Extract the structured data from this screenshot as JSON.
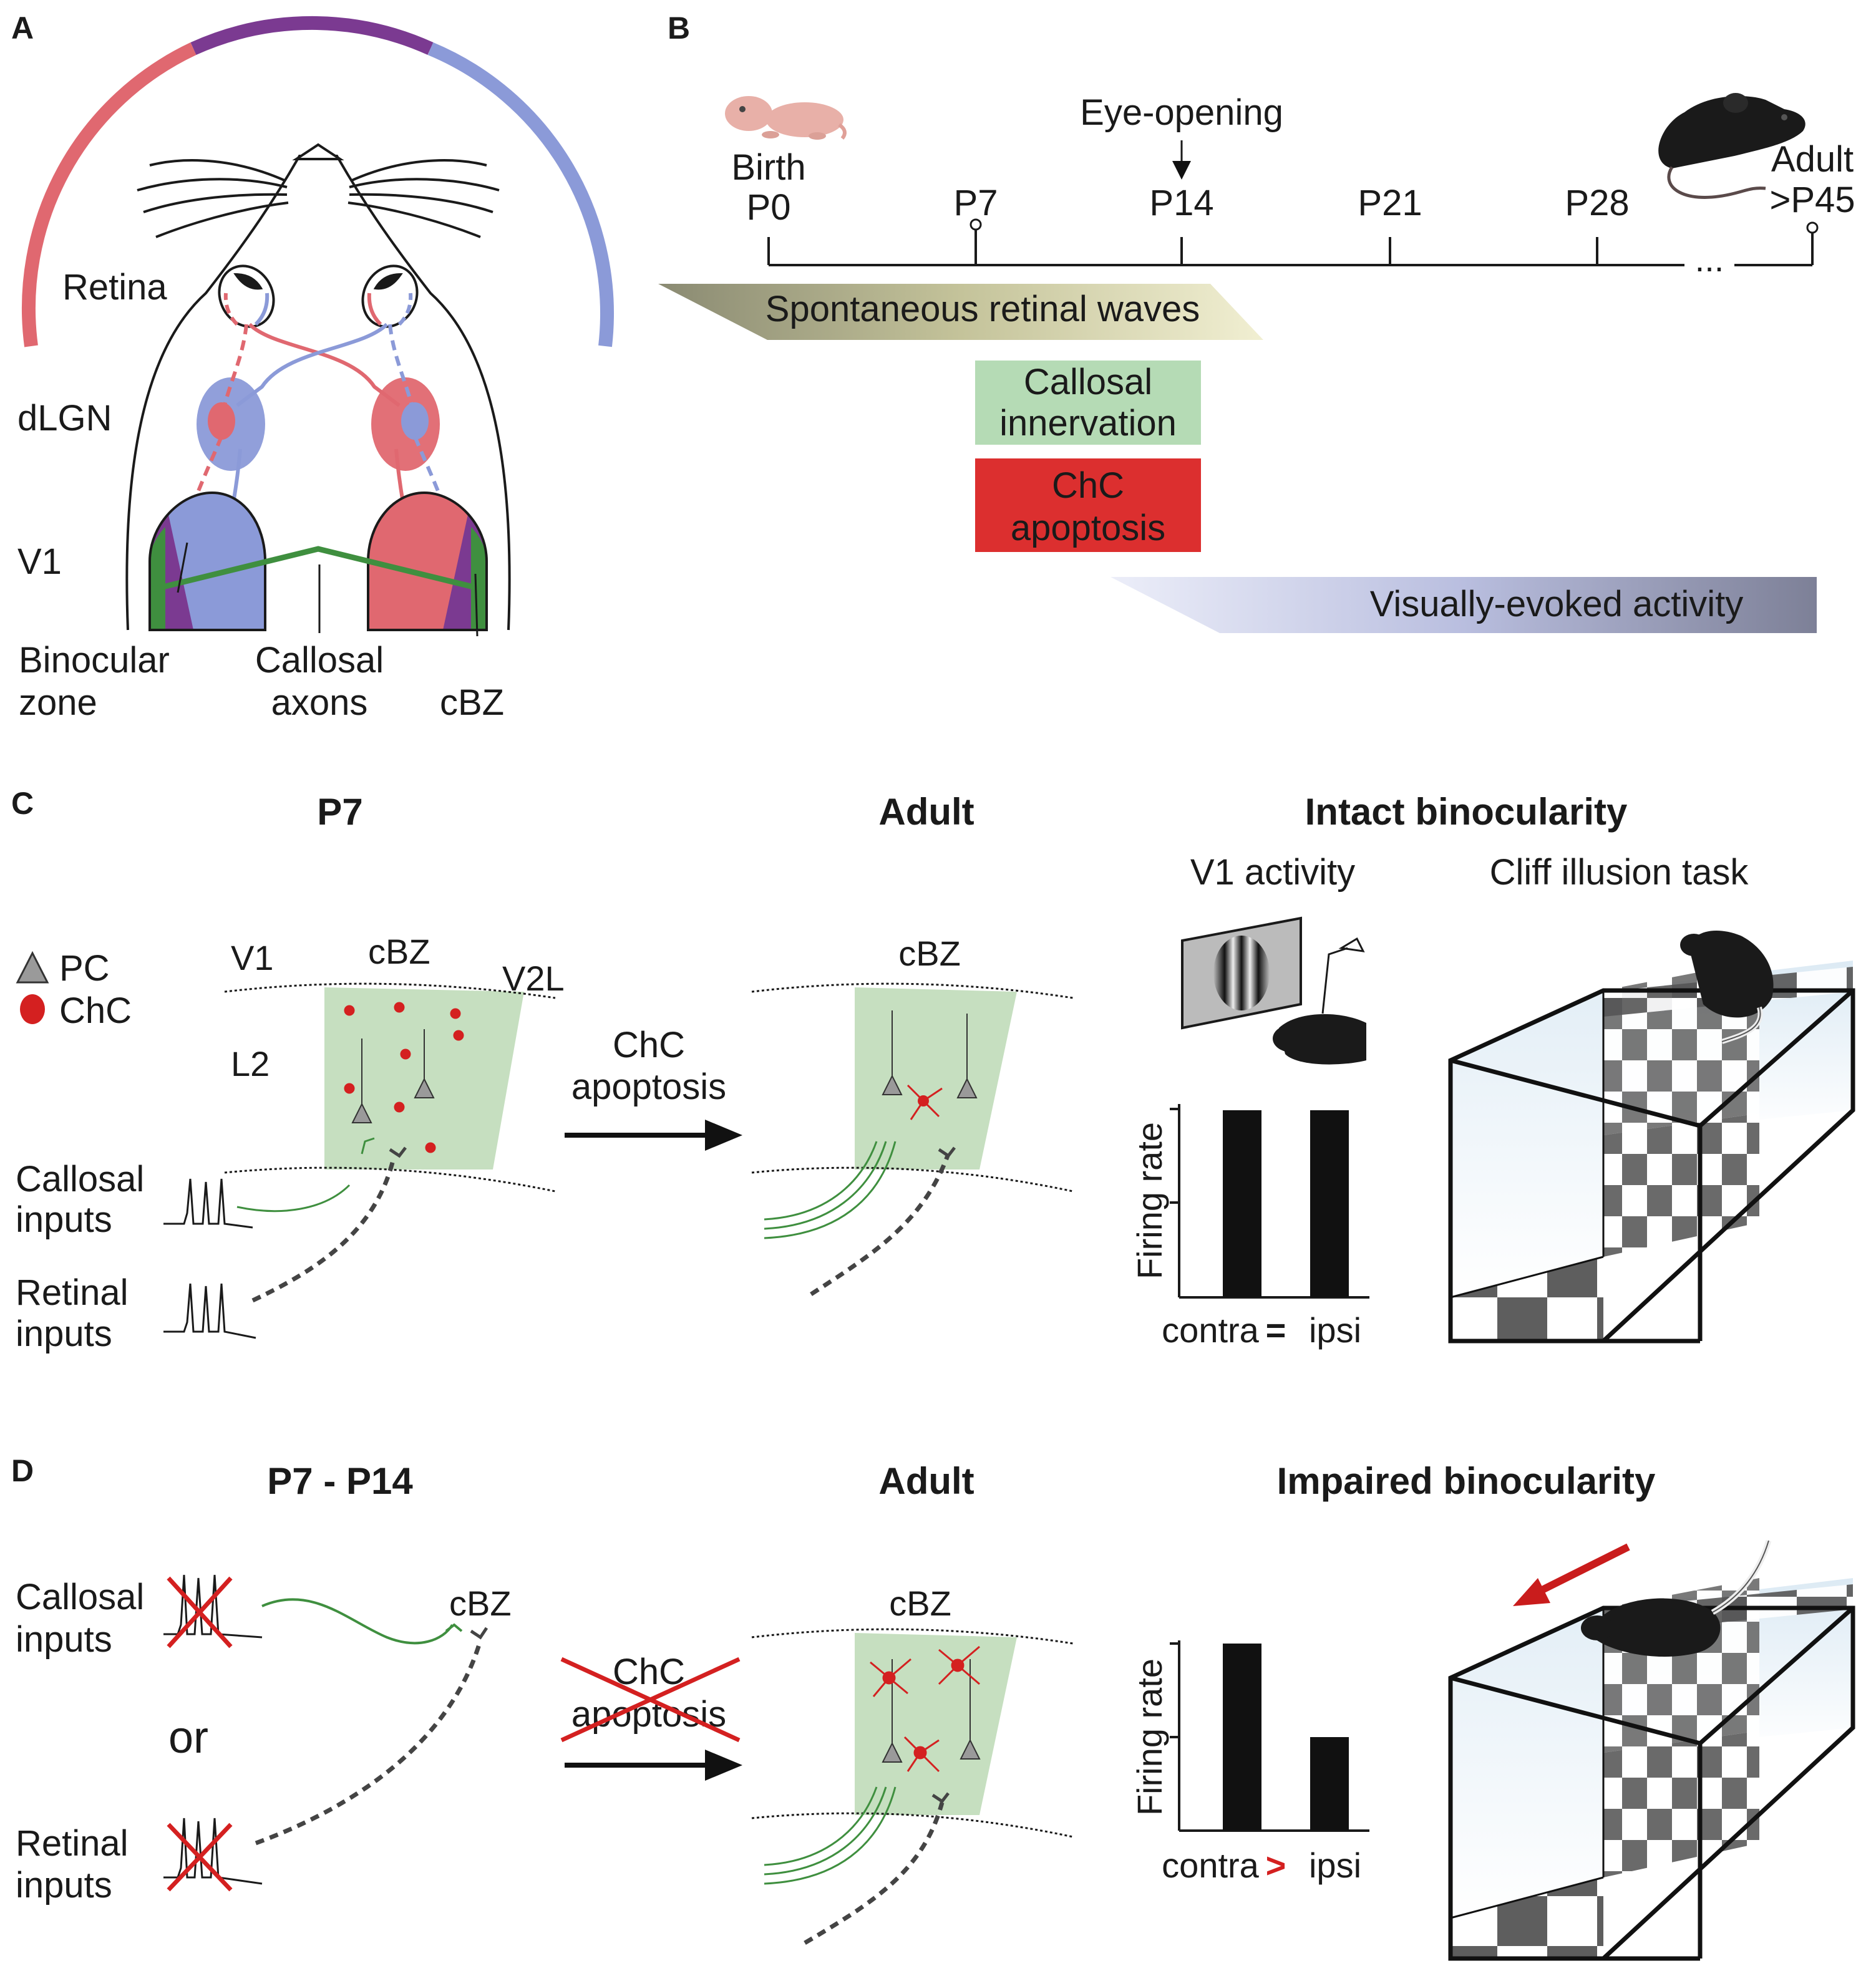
{
  "panels": {
    "A": {
      "letter": "A",
      "labels": {
        "retina": "Retina",
        "dlgn": "dLGN",
        "v1": "V1",
        "binocular_1": "Binocular",
        "binocular_2": "zone",
        "callosal_1": "Callosal",
        "callosal_2": "axons",
        "cbz": "cBZ"
      }
    },
    "B": {
      "letter": "B",
      "birth": "Birth",
      "eye_opening": "Eye-opening",
      "adult": "Adult",
      "ellipsis": "...",
      "ticks": [
        "P0",
        "P7",
        "P14",
        "P21",
        "P28",
        ">P45"
      ],
      "bands": {
        "retinal_waves": "Spontaneous retinal waves",
        "callosal_1": "Callosal",
        "callosal_2": "innervation",
        "chc_1": "ChC",
        "chc_2": "apoptosis",
        "visual": "Visually-evoked activity"
      }
    },
    "C": {
      "letter": "C",
      "titles": {
        "p7": "P7",
        "adult": "Adult",
        "intact": "Intact binocularity"
      },
      "sub": {
        "v1_activity": "V1 activity",
        "cliff": "Cliff illusion task"
      },
      "legend": {
        "pc": "PC",
        "chc": "ChC"
      },
      "tissue": {
        "v1": "V1",
        "cbz": "cBZ",
        "v2l": "V2L",
        "l2": "L2",
        "cbz_adult": "cBZ"
      },
      "inputs": {
        "callosal_1": "Callosal",
        "callosal_2": "inputs",
        "retinal_1": "Retinal",
        "retinal_2": "inputs"
      },
      "arrow_1": "ChC",
      "arrow_2": "apoptosis",
      "ylabel": "Firing rate",
      "xl_contra": "contra",
      "xl_sym": "=",
      "xl_ipsi": "ipsi",
      "bars": {
        "contra": 1.0,
        "ipsi": 1.0
      }
    },
    "D": {
      "letter": "D",
      "titles": {
        "p7p14": "P7 - P14",
        "adult": "Adult",
        "impaired": "Impaired binocularity"
      },
      "inputs": {
        "callosal_1": "Callosal",
        "callosal_2": "inputs",
        "or": "or",
        "retinal_1": "Retinal",
        "retinal_2": "inputs"
      },
      "cbz_left": "cBZ",
      "cbz_adult": "cBZ",
      "arrow_1": "ChC",
      "arrow_2": "apoptosis",
      "ylabel": "Firing rate",
      "xl_contra": "contra",
      "xl_sym": ">",
      "xl_ipsi": "ipsi",
      "bars": {
        "contra": 1.0,
        "ipsi": 0.5
      }
    }
  },
  "colors": {
    "contra_red": "#e06870",
    "ipsi_blue": "#8b9ad8",
    "purple": "#7b3a91",
    "green": "#3f8f3f",
    "chc_red": "#d42020",
    "tissue_green": "#c6dfc0",
    "box_green": "#b5dbb5",
    "box_red": "#dc2f2f"
  },
  "icons": [
    "mouse-pup-icon",
    "adult-mouse-icon",
    "grating-monitor-icon",
    "recording-mouse-icon",
    "mouse-on-platform-icon"
  ]
}
